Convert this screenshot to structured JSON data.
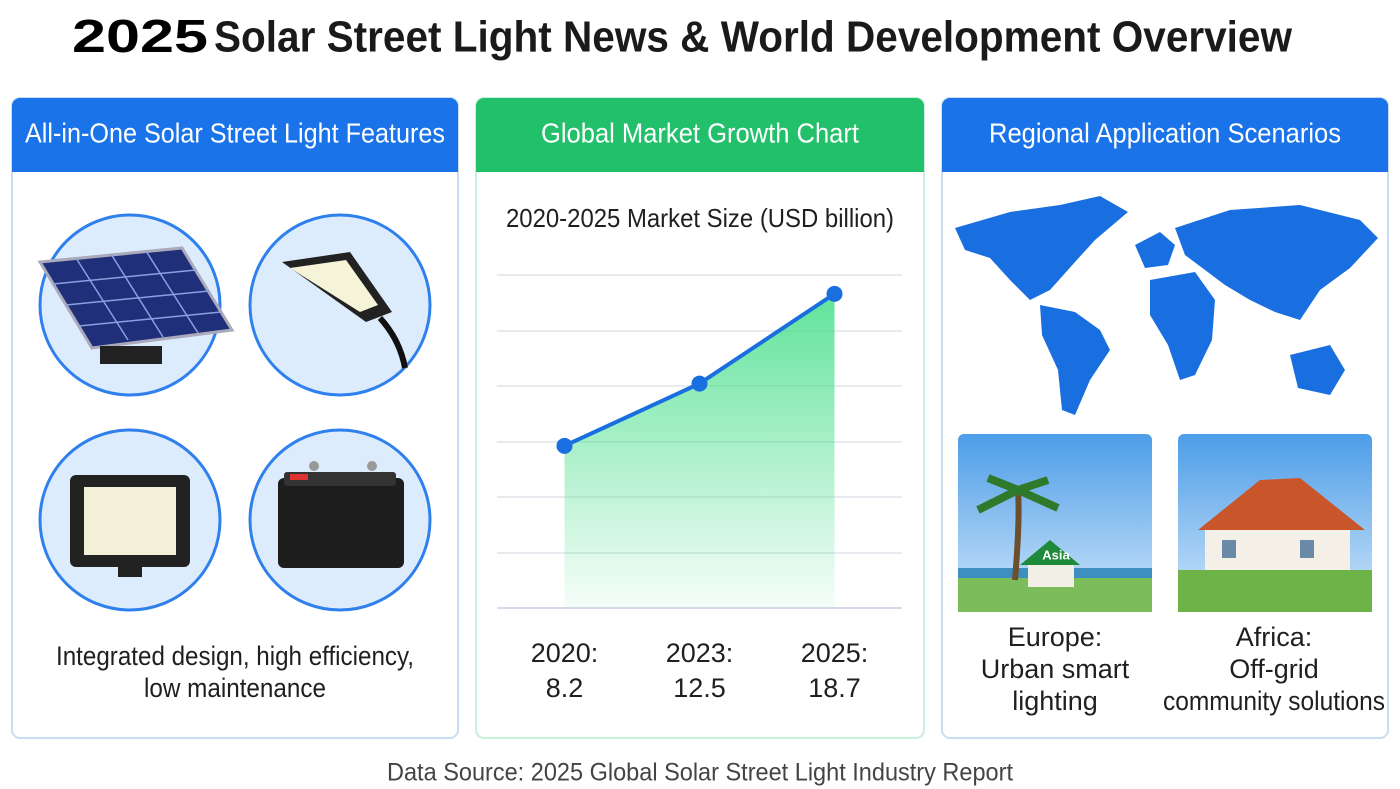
{
  "header": {
    "year": "2025",
    "title": "Solar Street Light News & World Development Overview"
  },
  "panels": [
    {
      "title": "All-in-One Solar Street Light Features",
      "caption": [
        "Integrated design, high efficiency,",
        "low maintenance"
      ]
    },
    {
      "title": "Global Market Growth Chart"
    },
    {
      "title": "Regional Application Scenarios",
      "scenarios": [
        {
          "sign": "Asia",
          "caption": [
            "Europe:",
            "Urban smart",
            "lighting"
          ]
        },
        {
          "caption": [
            "Africa:",
            "Off-grid",
            "community solutions"
          ]
        }
      ]
    }
  ],
  "chart_data": {
    "type": "line",
    "title": "2020-2025 Market Size (USD billion)",
    "categories": [
      "2020:",
      "2023:",
      "2025:"
    ],
    "values": [
      8.2,
      12.5,
      18.7
    ],
    "color": "#1a6fe0",
    "fill": "#4fe08f",
    "ylim": [
      -3,
      20
    ]
  },
  "footer": {
    "source": "Data Source: 2025 Global Solar Street Light Industry Report"
  }
}
